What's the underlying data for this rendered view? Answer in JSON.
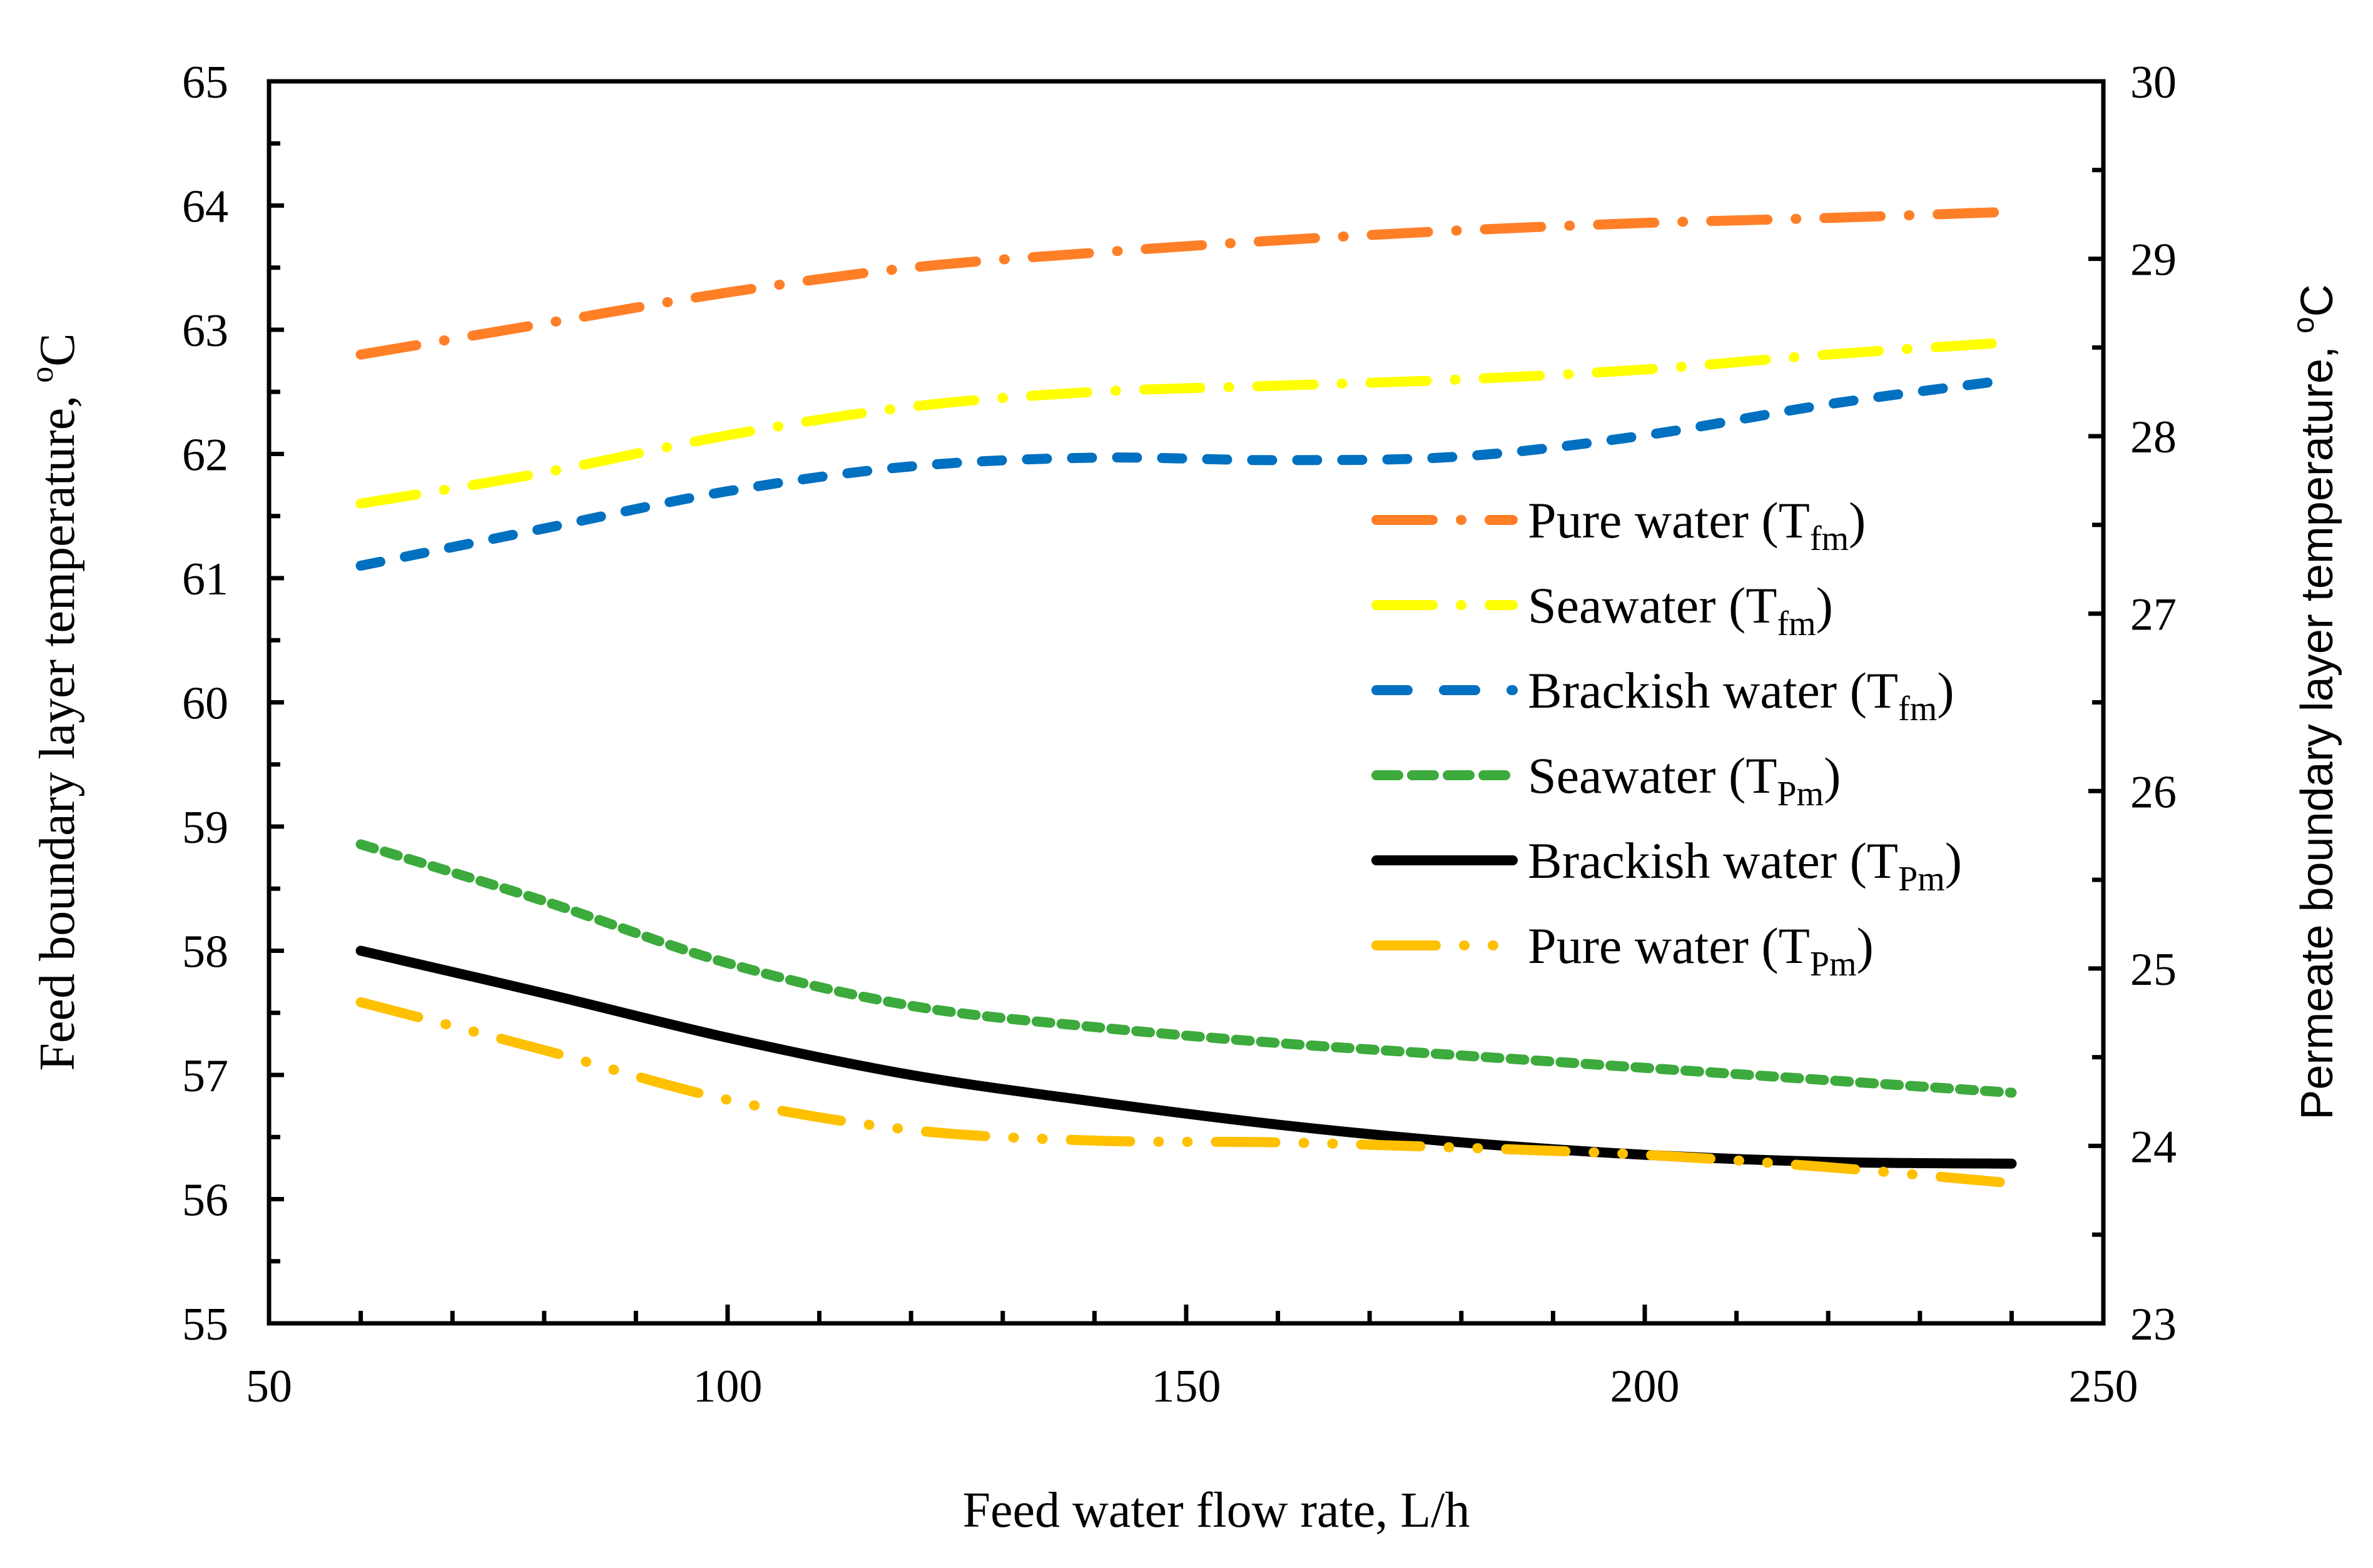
{
  "chart_data": {
    "type": "line",
    "title": "",
    "xlabel": "Feed water flow rate, L/h",
    "ylabel": {
      "prefix": "Feed boundary layer temperature, ",
      "sup": "o",
      "unit": "C"
    },
    "y2label": {
      "prefix": "Permeate boundary layer temperature, ",
      "sup": "o",
      "unit": "C"
    },
    "xlim": [
      50,
      250
    ],
    "ylim": [
      55,
      65
    ],
    "y2lim": [
      23,
      30
    ],
    "xticks": [
      50,
      100,
      150,
      200,
      250
    ],
    "yticks": [
      55,
      56,
      57,
      58,
      59,
      60,
      61,
      62,
      63,
      64,
      65
    ],
    "y2ticks": [
      23,
      24,
      25,
      26,
      27,
      28,
      29,
      30
    ],
    "grid": false,
    "legend_position": "center-right",
    "x": [
      60,
      80,
      100,
      120,
      140,
      160,
      180,
      200,
      220,
      240
    ],
    "series": [
      {
        "name": "Pure water",
        "sym": "T",
        "sub": "fm",
        "axis": "left",
        "color": "#FF7F27",
        "style": "dash-dot",
        "values": [
          62.8,
          63.05,
          63.3,
          63.5,
          63.62,
          63.72,
          63.8,
          63.86,
          63.9,
          63.95
        ]
      },
      {
        "name": "Seawater",
        "sym": "T",
        "sub": "fm",
        "axis": "left",
        "color": "#FFFF00",
        "style": "dash-dot",
        "values": [
          61.6,
          61.85,
          62.15,
          62.38,
          62.5,
          62.55,
          62.6,
          62.68,
          62.8,
          62.9
        ]
      },
      {
        "name": "Brackish water",
        "sym": "T",
        "sub": "fm",
        "axis": "left",
        "color": "#0070C0",
        "style": "dash",
        "values": [
          61.1,
          61.4,
          61.7,
          61.9,
          61.97,
          61.95,
          61.98,
          62.15,
          62.4,
          62.6
        ]
      },
      {
        "name": "Seawater",
        "sym": "T",
        "sub": "Pm",
        "axis": "right",
        "color": "#3CAA3C",
        "style": "short-dash",
        "values": [
          25.7,
          25.38,
          25.03,
          24.79,
          24.67,
          24.58,
          24.51,
          24.44,
          24.37,
          24.3
        ]
      },
      {
        "name": "Brackish water",
        "sym": "T",
        "sub": "Pm",
        "axis": "right",
        "color": "#000000",
        "style": "solid",
        "values": [
          25.1,
          24.86,
          24.61,
          24.4,
          24.25,
          24.12,
          24.02,
          23.95,
          23.91,
          23.9
        ]
      },
      {
        "name": "Pure water",
        "sym": "T",
        "sub": "Pm",
        "axis": "right",
        "color": "#FFC000",
        "style": "dash-dot-dot",
        "values": [
          24.81,
          24.54,
          24.26,
          24.09,
          24.03,
          24.02,
          23.99,
          23.95,
          23.88,
          23.79
        ]
      }
    ]
  }
}
